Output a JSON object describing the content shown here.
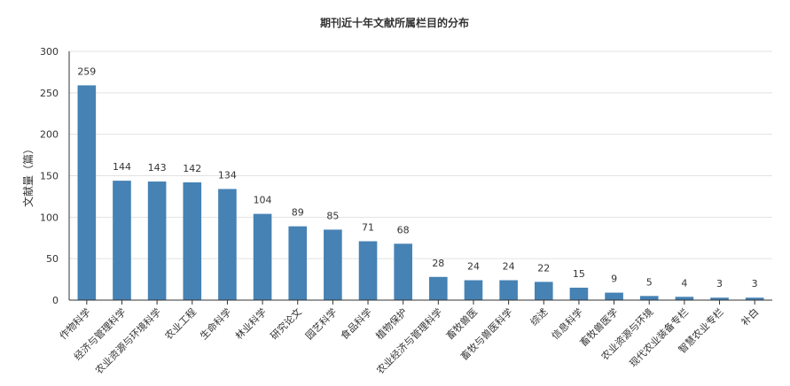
{
  "chart_data": {
    "type": "bar",
    "title": "期刊近十年文献所属栏目的分布",
    "xlabel": "",
    "ylabel": "文献量（篇）",
    "ylim": [
      0,
      300
    ],
    "yticks": [
      0,
      50,
      100,
      150,
      200,
      250,
      300
    ],
    "grid": true,
    "bar_color": "#4682b4",
    "categories": [
      "作物科学",
      "经济与管理科学",
      "农业资源与环境科学",
      "农业工程",
      "生命科学",
      "林业科学",
      "研究论文",
      "园艺科学",
      "食品科学",
      "植物保护",
      "农业经济与管理科学",
      "畜牧兽医",
      "畜牧与兽医科学",
      "综述",
      "信息科学",
      "畜牧兽医学",
      "农业资源与环境",
      "现代农业装备专栏",
      "智慧农业专栏",
      "补白"
    ],
    "values": [
      259,
      144,
      143,
      142,
      134,
      104,
      89,
      85,
      71,
      68,
      28,
      24,
      24,
      22,
      15,
      9,
      5,
      4,
      3,
      3
    ]
  }
}
